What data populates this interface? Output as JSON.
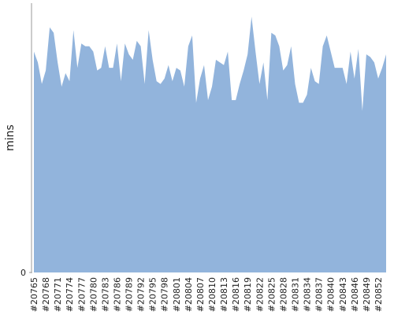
{
  "chart_data": {
    "type": "area",
    "y_label": "mins",
    "categories": [
      "#20765",
      null,
      null,
      "#20768",
      null,
      null,
      "#20771",
      null,
      null,
      "#20774",
      null,
      null,
      "#20777",
      null,
      null,
      "#20780",
      null,
      null,
      "#20783",
      null,
      null,
      "#20786",
      null,
      null,
      "#20789",
      null,
      null,
      "#20792",
      null,
      null,
      "#20795",
      null,
      null,
      "#20798",
      null,
      null,
      "#20801",
      null,
      null,
      "#20804",
      null,
      null,
      "#20807",
      null,
      null,
      "#20810",
      null,
      null,
      "#20813",
      null,
      null,
      "#20816",
      null,
      null,
      "#20819",
      null,
      null,
      "#20822",
      null,
      null,
      "#20825",
      null,
      null,
      "#20828",
      null,
      null,
      "#20831",
      null,
      null,
      "#20834",
      null,
      null,
      "#20837",
      null,
      null,
      "#20840",
      null,
      null,
      "#20843",
      null,
      null,
      "#20846",
      null,
      null,
      "#20849",
      null,
      null,
      "#20852",
      null,
      null
    ],
    "series": [
      {
        "color": "#92b4dc",
        "values": [
          82,
          78,
          70,
          75,
          91,
          89,
          78,
          69,
          74,
          71,
          90,
          76,
          85,
          84,
          84,
          82,
          75,
          76,
          84,
          76,
          76,
          85,
          71,
          85,
          81,
          79,
          86,
          84,
          70,
          90,
          79,
          71,
          70,
          72,
          77,
          71,
          76,
          75,
          69,
          84,
          88,
          63,
          72,
          77,
          64,
          69,
          79,
          78,
          77,
          82,
          64,
          64,
          70,
          75,
          81,
          95,
          82,
          70,
          78,
          64,
          89,
          88,
          84,
          75,
          77,
          84,
          70,
          63,
          63,
          66,
          76,
          71,
          70,
          84,
          88,
          82,
          76,
          76,
          76,
          70,
          82,
          72,
          83,
          60,
          81,
          80,
          78,
          72,
          76,
          81
        ]
      }
    ],
    "ylim": [
      0,
      100
    ],
    "yticks": [
      0
    ]
  }
}
